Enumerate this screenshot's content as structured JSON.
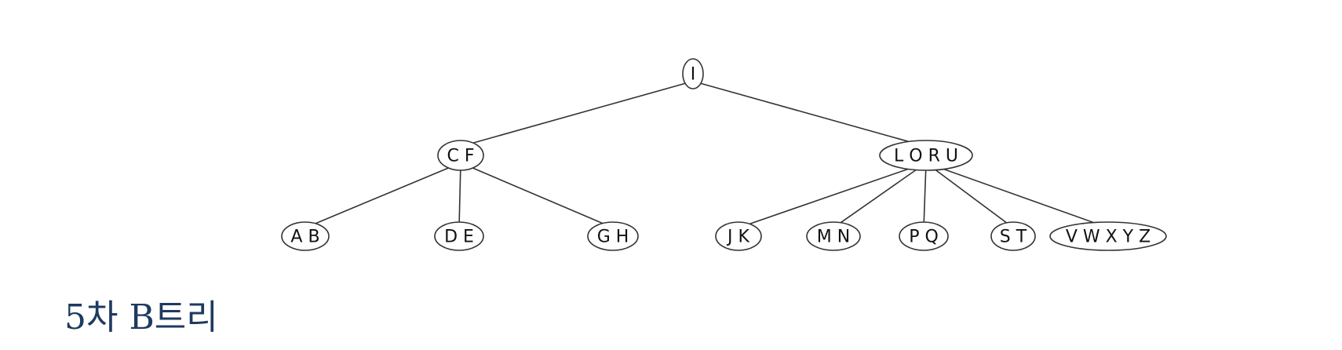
{
  "caption": "5차 B트리",
  "colors": {
    "caption": "#1e3a5f",
    "line": "#333333",
    "node_fill": "#ffffff",
    "text": "#111111"
  },
  "tree": {
    "nodes": [
      {
        "id": "root",
        "level": 0,
        "label": "I"
      },
      {
        "id": "cf",
        "level": 1,
        "label": "C F"
      },
      {
        "id": "loru",
        "level": 1,
        "label": "L O R U"
      },
      {
        "id": "ab",
        "level": 2,
        "label": "A B"
      },
      {
        "id": "de",
        "level": 2,
        "label": "D E"
      },
      {
        "id": "gh",
        "level": 2,
        "label": "G H"
      },
      {
        "id": "jk",
        "level": 2,
        "label": "J K"
      },
      {
        "id": "mn",
        "level": 2,
        "label": "M N"
      },
      {
        "id": "pq",
        "level": 2,
        "label": "P Q"
      },
      {
        "id": "st",
        "level": 2,
        "label": "S T"
      },
      {
        "id": "vwxyz",
        "level": 2,
        "label": "V W X Y Z"
      }
    ],
    "edges": [
      [
        "root",
        "cf"
      ],
      [
        "root",
        "loru"
      ],
      [
        "cf",
        "ab"
      ],
      [
        "cf",
        "de"
      ],
      [
        "cf",
        "gh"
      ],
      [
        "loru",
        "jk"
      ],
      [
        "loru",
        "mn"
      ],
      [
        "loru",
        "pq"
      ],
      [
        "loru",
        "st"
      ],
      [
        "loru",
        "vwxyz"
      ]
    ]
  }
}
